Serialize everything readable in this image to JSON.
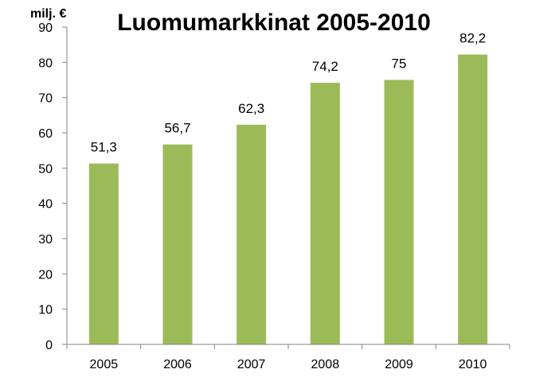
{
  "chart_data": {
    "type": "bar",
    "title": "Luomumarkkinat 2005-2010",
    "ylabel": "milj. €",
    "xlabel": "",
    "categories": [
      "2005",
      "2006",
      "2007",
      "2008",
      "2009",
      "2010"
    ],
    "values": [
      51.3,
      56.7,
      62.3,
      74.2,
      75,
      82.2
    ],
    "data_labels": [
      "51,3",
      "56,7",
      "62,3",
      "74,2",
      "75",
      "82,2"
    ],
    "ylim": [
      0,
      90
    ],
    "yticks": [
      0,
      10,
      20,
      30,
      40,
      50,
      60,
      70,
      80,
      90
    ],
    "bar_color": "#9BBB59",
    "grid": false,
    "legend": "none"
  }
}
